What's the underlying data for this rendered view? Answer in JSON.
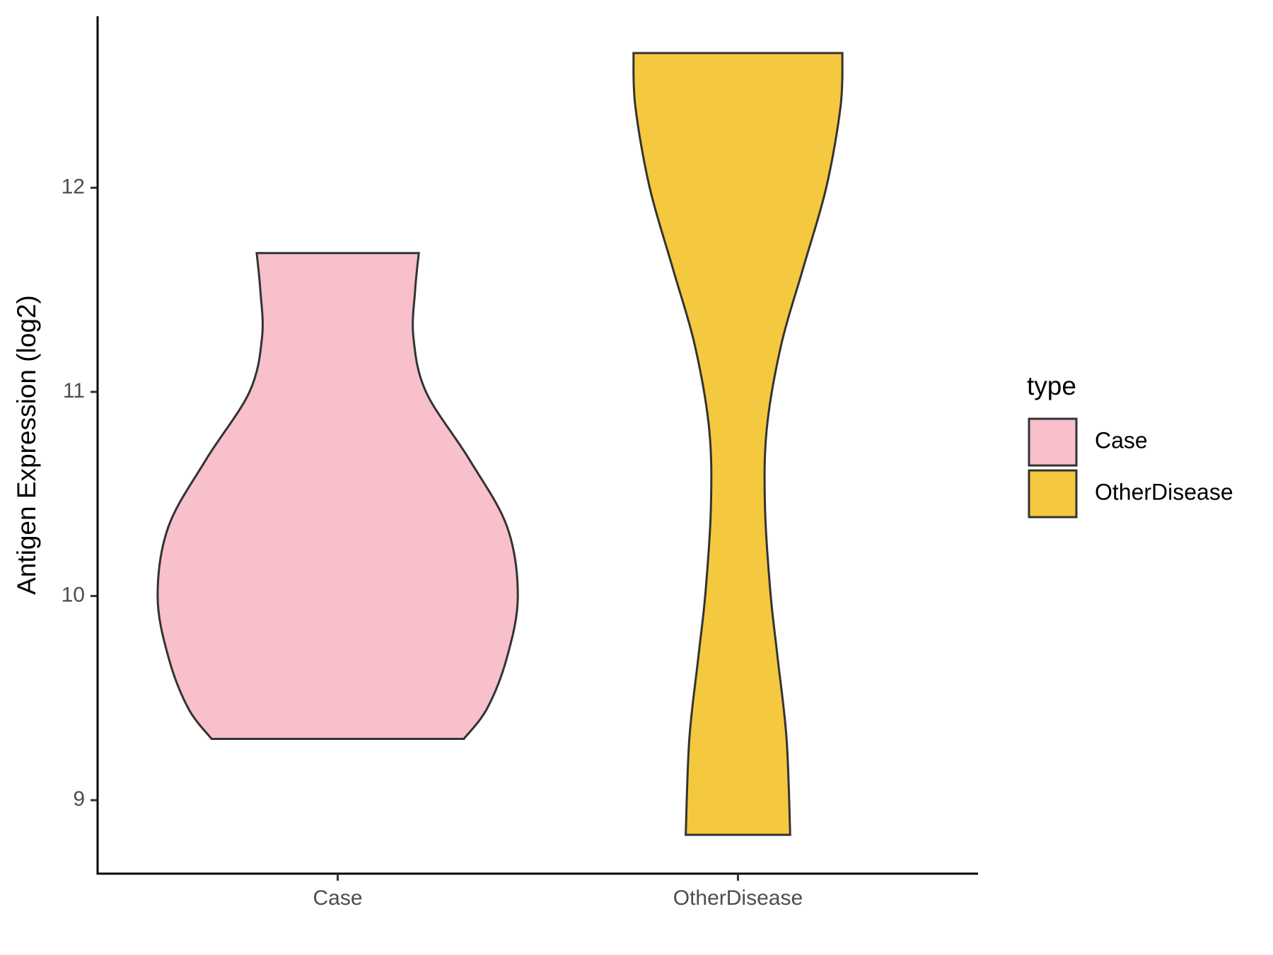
{
  "chart_data": {
    "type": "violin",
    "y_label": "Antigen Expression (log2)",
    "legend_title": "type",
    "categories": [
      "Case",
      "OtherDisease"
    ],
    "series": [
      {
        "name": "Case",
        "color": "#f7c0cb",
        "y": [
          9.3,
          9.45,
          9.7,
          10.0,
          10.34,
          10.67,
          11.0,
          11.27,
          11.5,
          11.68
        ],
        "width": [
          0.7,
          0.83,
          0.94,
          1.0,
          0.94,
          0.73,
          0.49,
          0.42,
          0.43,
          0.45
        ]
      },
      {
        "name": "OtherDisease",
        "color": "#f5c93f",
        "y": [
          8.83,
          9.3,
          9.7,
          10.02,
          10.44,
          10.82,
          11.23,
          11.6,
          12.0,
          12.4,
          12.66
        ],
        "width": [
          0.29,
          0.27,
          0.22,
          0.18,
          0.15,
          0.16,
          0.24,
          0.36,
          0.49,
          0.57,
          0.58
        ]
      }
    ],
    "ylim": [
      8.64,
      12.84
    ],
    "yticks": [
      9,
      10,
      11,
      12
    ]
  }
}
